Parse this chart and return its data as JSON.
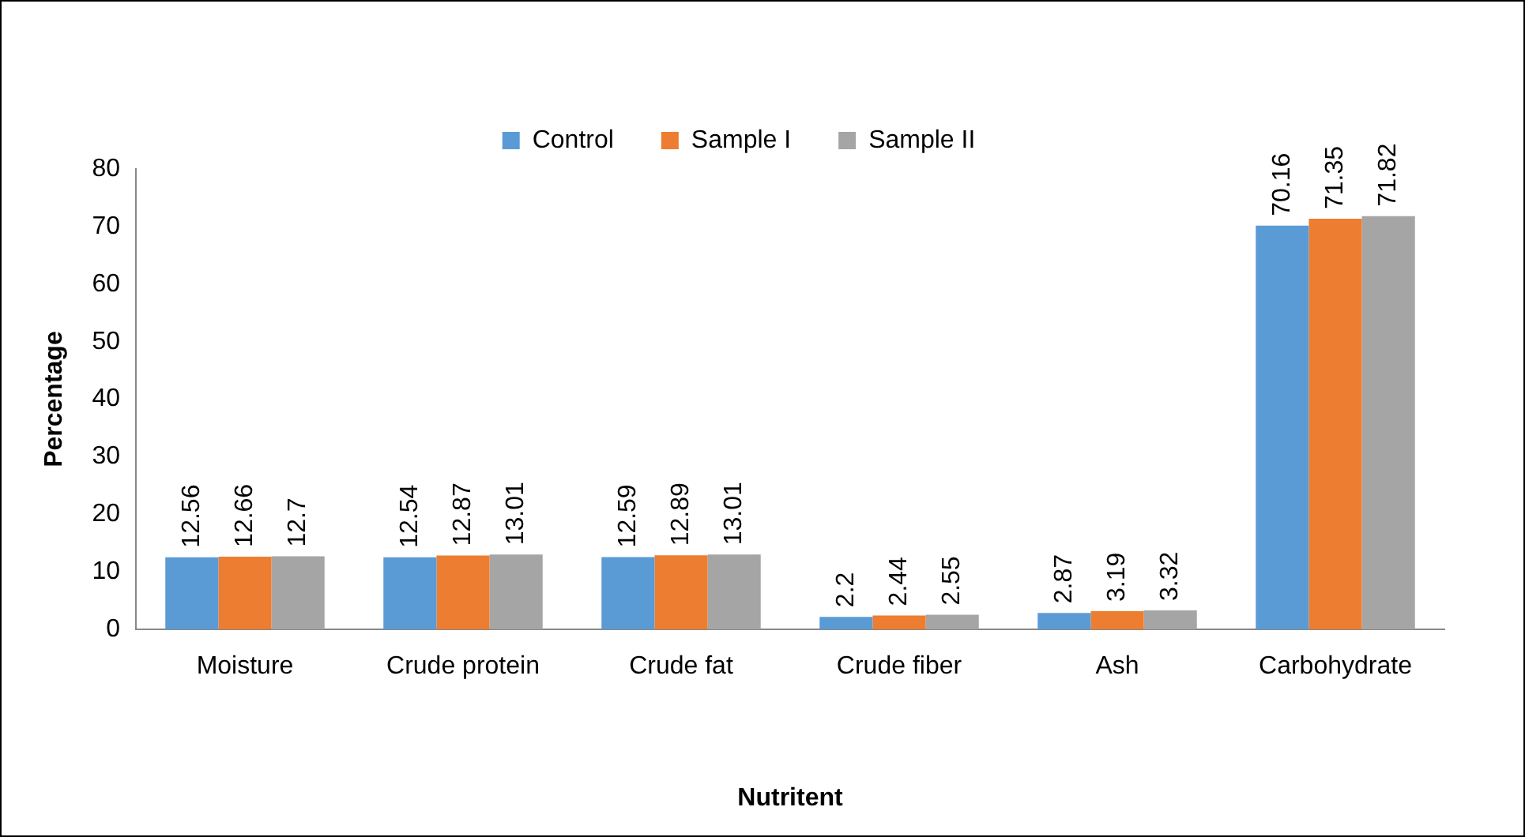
{
  "chart_data": {
    "type": "bar",
    "xlabel": "Nutritent",
    "ylabel": "Percentage",
    "categories": [
      "Moisture",
      "Crude protein",
      "Crude fat",
      "Crude fiber",
      "Ash",
      "Carbohydrate"
    ],
    "series": [
      {
        "name": "Control",
        "color": "#5b9bd5",
        "values": [
          12.56,
          12.54,
          12.59,
          2.2,
          2.87,
          70.16
        ]
      },
      {
        "name": "Sample I",
        "color": "#ed7d31",
        "values": [
          12.66,
          12.87,
          12.89,
          2.44,
          3.19,
          71.35
        ]
      },
      {
        "name": "Sample II",
        "color": "#a5a5a5",
        "values": [
          12.7,
          13.01,
          13.01,
          2.55,
          3.32,
          71.82
        ]
      }
    ],
    "ylim": [
      0,
      80
    ],
    "yticks": [
      0,
      10,
      20,
      30,
      40,
      50,
      60,
      70,
      80
    ],
    "grid": false,
    "legend": "top",
    "data_labels": true
  }
}
